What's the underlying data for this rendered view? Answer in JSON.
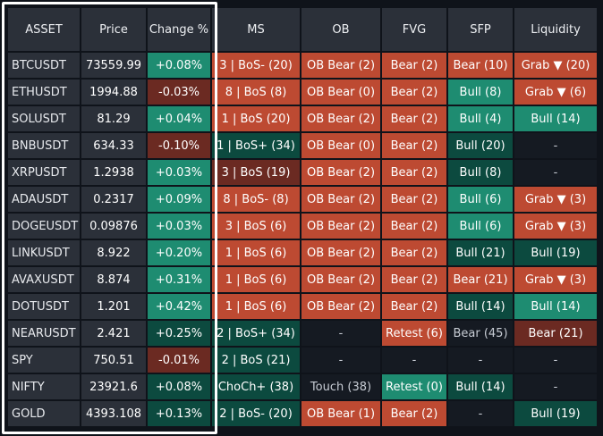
{
  "colors": {
    "background": "#0f131a",
    "header": "#2b3039",
    "bear_bright": "#bd4a32",
    "bear_dark": "#6b2a22",
    "bull_bright": "#1e8c71",
    "bull_dark": "#0c4a3f",
    "highlight_frame": "#ffffff"
  },
  "headers": [
    "ASSET",
    "Price",
    "Change %",
    "MS",
    "OB",
    "FVG",
    "SFP",
    "Liquidity"
  ],
  "rows": [
    {
      "asset": "BTCUSDT",
      "price": "73559.99",
      "change": "+0.08%",
      "change_color": "bull_bright",
      "ms": "3 | BoS- (20)",
      "ms_color": "bear_bright",
      "ob": "OB Bear (2)",
      "ob_color": "bear_bright",
      "fvg": "Bear (2)",
      "fvg_color": "bear_bright",
      "sfp": "Bear (10)",
      "sfp_color": "bear_bright",
      "liq": "Grab ▼ (20)",
      "liq_color": "bear_bright"
    },
    {
      "asset": "ETHUSDT",
      "price": "1994.88",
      "change": "-0.03%",
      "change_color": "bear_dark",
      "ms": "8 | BoS (8)",
      "ms_color": "bear_bright",
      "ob": "OB Bear (0)",
      "ob_color": "bear_bright",
      "fvg": "Bear (2)",
      "fvg_color": "bear_bright",
      "sfp": "Bull (8)",
      "sfp_color": "bull_bright",
      "liq": "Grab ▼ (6)",
      "liq_color": "bear_bright"
    },
    {
      "asset": "SOLUSDT",
      "price": "81.29",
      "change": "+0.04%",
      "change_color": "bull_bright",
      "ms": "1 | BoS (20)",
      "ms_color": "bear_bright",
      "ob": "OB Bear (2)",
      "ob_color": "bear_bright",
      "fvg": "Bear (2)",
      "fvg_color": "bear_bright",
      "sfp": "Bull (4)",
      "sfp_color": "bull_bright",
      "liq": "Bull (14)",
      "liq_color": "bull_bright"
    },
    {
      "asset": "BNBUSDT",
      "price": "634.33",
      "change": "-0.10%",
      "change_color": "bear_dark",
      "ms": "1 | BoS+ (34)",
      "ms_color": "bull_dark",
      "ob": "OB Bear (0)",
      "ob_color": "bear_bright",
      "fvg": "Bear (2)",
      "fvg_color": "bear_bright",
      "sfp": "Bull (20)",
      "sfp_color": "bull_dark",
      "liq": "-",
      "liq_color": "empty"
    },
    {
      "asset": "XRPUSDT",
      "price": "1.2938",
      "change": "+0.03%",
      "change_color": "bull_bright",
      "ms": "3 | BoS (19)",
      "ms_color": "bear_dark",
      "ob": "OB Bear (2)",
      "ob_color": "bear_bright",
      "fvg": "Bear (2)",
      "fvg_color": "bear_bright",
      "sfp": "Bull (8)",
      "sfp_color": "bull_dark",
      "liq": "-",
      "liq_color": "empty"
    },
    {
      "asset": "ADAUSDT",
      "price": "0.2317",
      "change": "+0.09%",
      "change_color": "bull_bright",
      "ms": "8 | BoS- (8)",
      "ms_color": "bear_bright",
      "ob": "OB Bear (2)",
      "ob_color": "bear_bright",
      "fvg": "Bear (2)",
      "fvg_color": "bear_bright",
      "sfp": "Bull (6)",
      "sfp_color": "bull_bright",
      "liq": "Grab ▼ (3)",
      "liq_color": "bear_bright"
    },
    {
      "asset": "DOGEUSDT",
      "price": "0.09876",
      "change": "+0.03%",
      "change_color": "bull_bright",
      "ms": "3 | BoS (6)",
      "ms_color": "bear_bright",
      "ob": "OB Bear (2)",
      "ob_color": "bear_bright",
      "fvg": "Bear (2)",
      "fvg_color": "bear_bright",
      "sfp": "Bull (6)",
      "sfp_color": "bull_bright",
      "liq": "Grab ▼ (3)",
      "liq_color": "bear_bright"
    },
    {
      "asset": "LINKUSDT",
      "price": "8.922",
      "change": "+0.20%",
      "change_color": "bull_bright",
      "ms": "1 | BoS (6)",
      "ms_color": "bear_bright",
      "ob": "OB Bear (2)",
      "ob_color": "bear_bright",
      "fvg": "Bear (2)",
      "fvg_color": "bear_bright",
      "sfp": "Bull (21)",
      "sfp_color": "bull_dark",
      "liq": "Bull (19)",
      "liq_color": "bull_dark"
    },
    {
      "asset": "AVAXUSDT",
      "price": "8.874",
      "change": "+0.31%",
      "change_color": "bull_bright",
      "ms": "1 | BoS (6)",
      "ms_color": "bear_bright",
      "ob": "OB Bear (2)",
      "ob_color": "bear_bright",
      "fvg": "Bear (2)",
      "fvg_color": "bear_bright",
      "sfp": "Bear (21)",
      "sfp_color": "bear_bright",
      "liq": "Grab ▼ (3)",
      "liq_color": "bear_bright"
    },
    {
      "asset": "DOTUSDT",
      "price": "1.201",
      "change": "+0.42%",
      "change_color": "bull_bright",
      "ms": "1 | BoS (6)",
      "ms_color": "bear_bright",
      "ob": "OB Bear (2)",
      "ob_color": "bear_bright",
      "fvg": "Bear (2)",
      "fvg_color": "bear_bright",
      "sfp": "Bull (14)",
      "sfp_color": "bull_dark",
      "liq": "Bull (14)",
      "liq_color": "bull_bright"
    },
    {
      "asset": "NEARUSDT",
      "price": "2.421",
      "change": "+0.25%",
      "change_color": "bull_dark",
      "ms": "2 | BoS+ (34)",
      "ms_color": "bull_dark",
      "ob": "-",
      "ob_color": "empty",
      "fvg": "Retest (6)",
      "fvg_color": "bear_bright",
      "sfp": "Bear (45)",
      "sfp_color": "empty",
      "liq": "Bear (21)",
      "liq_color": "bear_dark"
    },
    {
      "asset": "SPY",
      "price": "750.51",
      "change": "-0.01%",
      "change_color": "bear_dark",
      "ms": "2 | BoS (21)",
      "ms_color": "bull_dark",
      "ob": "-",
      "ob_color": "empty",
      "fvg": "-",
      "fvg_color": "empty",
      "sfp": "-",
      "sfp_color": "empty",
      "liq": "-",
      "liq_color": "empty"
    },
    {
      "asset": "NIFTY",
      "price": "23921.6",
      "change": "+0.08%",
      "change_color": "bull_dark",
      "ms": "ChoCh+ (38)",
      "ms_color": "bull_dark",
      "ob": "Touch (38)",
      "ob_color": "empty",
      "fvg": "Retest (0)",
      "fvg_color": "bull_bright",
      "sfp": "Bull (14)",
      "sfp_color": "bull_dark",
      "liq": "-",
      "liq_color": "empty"
    },
    {
      "asset": "GOLD",
      "price": "4393.108",
      "change": "+0.13%",
      "change_color": "bull_dark",
      "ms": "2 | BoS- (20)",
      "ms_color": "bull_dark",
      "ob": "OB Bear (1)",
      "ob_color": "bear_bright",
      "fvg": "Bear (2)",
      "fvg_color": "bear_bright",
      "sfp": "-",
      "sfp_color": "empty",
      "liq": "Bull (19)",
      "liq_color": "bull_dark"
    }
  ]
}
